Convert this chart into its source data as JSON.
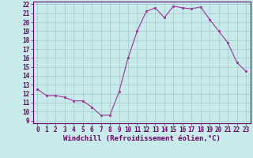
{
  "x": [
    0,
    1,
    2,
    3,
    4,
    5,
    6,
    7,
    8,
    9,
    10,
    11,
    12,
    13,
    14,
    15,
    16,
    17,
    18,
    19,
    20,
    21,
    22,
    23
  ],
  "y": [
    12.5,
    11.8,
    11.8,
    11.6,
    11.2,
    11.2,
    10.5,
    9.6,
    9.6,
    12.2,
    16.0,
    19.0,
    21.2,
    21.6,
    20.5,
    21.8,
    21.6,
    21.5,
    21.7,
    20.3,
    19.0,
    17.7,
    15.5,
    14.5
  ],
  "line_color": "#993399",
  "marker": "s",
  "marker_size": 2.0,
  "bg_color": "#c8eaea",
  "grid_color": "#a0c8c8",
  "xlabel": "Windchill (Refroidissement éolien,°C)",
  "ylim": [
    9,
    22
  ],
  "xlim": [
    -0.5,
    23.5
  ],
  "yticks": [
    9,
    10,
    11,
    12,
    13,
    14,
    15,
    16,
    17,
    18,
    19,
    20,
    21,
    22
  ],
  "xticks": [
    0,
    1,
    2,
    3,
    4,
    5,
    6,
    7,
    8,
    9,
    10,
    11,
    12,
    13,
    14,
    15,
    16,
    17,
    18,
    19,
    20,
    21,
    22,
    23
  ],
  "tick_fontsize": 5.5,
  "xlabel_fontsize": 6.5,
  "spine_color": "#660066",
  "tick_color": "#660066",
  "text_color": "#660066"
}
